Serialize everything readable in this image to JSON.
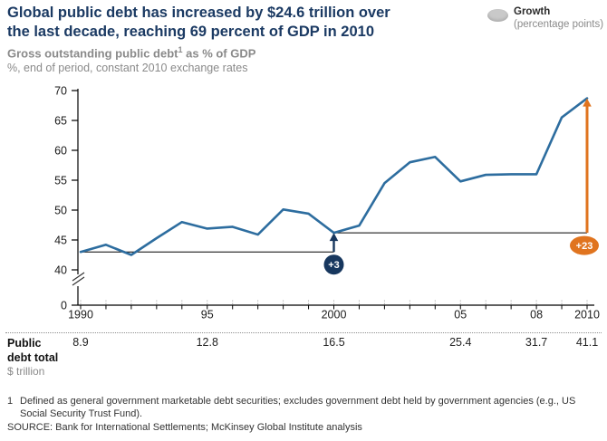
{
  "header": {
    "title_line1": "Global public debt has increased by $24.6 trillion over",
    "title_line2": "the last decade, reaching 69 percent of GDP in 2010",
    "subtitle_pre": "Gross outstanding public debt",
    "subtitle_sup": "1",
    "subtitle_post": " as % of GDP",
    "subtitle_note": "%, end of period, constant 2010 exchange rates"
  },
  "legend": {
    "label": "Growth",
    "sublabel": "(percentage points)",
    "swatch_color": "#c9c9c9"
  },
  "chart_data": {
    "type": "line",
    "title": "Gross outstanding public debt as % of GDP",
    "ylabel": "% of GDP",
    "ylim": [
      40,
      70
    ],
    "y_axis_break_to_zero": true,
    "yticks": [
      70,
      65,
      60,
      55,
      50,
      45,
      40,
      0
    ],
    "x": [
      1990,
      1991,
      1992,
      1993,
      1994,
      1995,
      1996,
      1997,
      1998,
      1999,
      2000,
      2001,
      2002,
      2003,
      2004,
      2005,
      2006,
      2007,
      2008,
      2009,
      2010
    ],
    "values": [
      43,
      44.2,
      42.5,
      45.3,
      48,
      46.9,
      47.2,
      45.9,
      50.1,
      49.4,
      46.2,
      47.4,
      54.5,
      58,
      58.9,
      54.8,
      55.9,
      56,
      56,
      65.5,
      68.7
    ],
    "x_tick_labels": [
      {
        "year": 1990,
        "label": "1990"
      },
      {
        "year": 1995,
        "label": "95"
      },
      {
        "year": 2000,
        "label": "2000"
      },
      {
        "year": 2005,
        "label": "05"
      },
      {
        "year": 2008,
        "label": "08"
      },
      {
        "year": 2010,
        "label": "2010"
      }
    ],
    "line_color": "#2d6d9f",
    "annotations": [
      {
        "start_year": 1990,
        "end_year": 2000,
        "baseline_value": 43,
        "end_value": 46.2,
        "label": "+3",
        "color": "#17375e",
        "badge_shape": "circle"
      },
      {
        "start_year": 2000,
        "end_year": 2010,
        "baseline_value": 46.2,
        "end_value": 68.7,
        "label": "+23",
        "color": "#e0741f",
        "badge_shape": "ellipse"
      }
    ]
  },
  "table": {
    "row_label": "Public debt total",
    "row_unit": "$ trillion",
    "columns": [
      {
        "year": 1990,
        "value": "8.9"
      },
      {
        "year": 1995,
        "value": "12.8"
      },
      {
        "year": 2000,
        "value": "16.5"
      },
      {
        "year": 2005,
        "value": "25.4"
      },
      {
        "year": 2008,
        "value": "31.7"
      },
      {
        "year": 2010,
        "value": "41.1"
      }
    ]
  },
  "footnote": {
    "number": "1",
    "text": "Defined as general government marketable debt securities; excludes government debt held by government agencies (e.g., US Social Security Trust Fund)."
  },
  "source": "SOURCE: Bank for International Settlements; McKinsey Global Institute analysis"
}
